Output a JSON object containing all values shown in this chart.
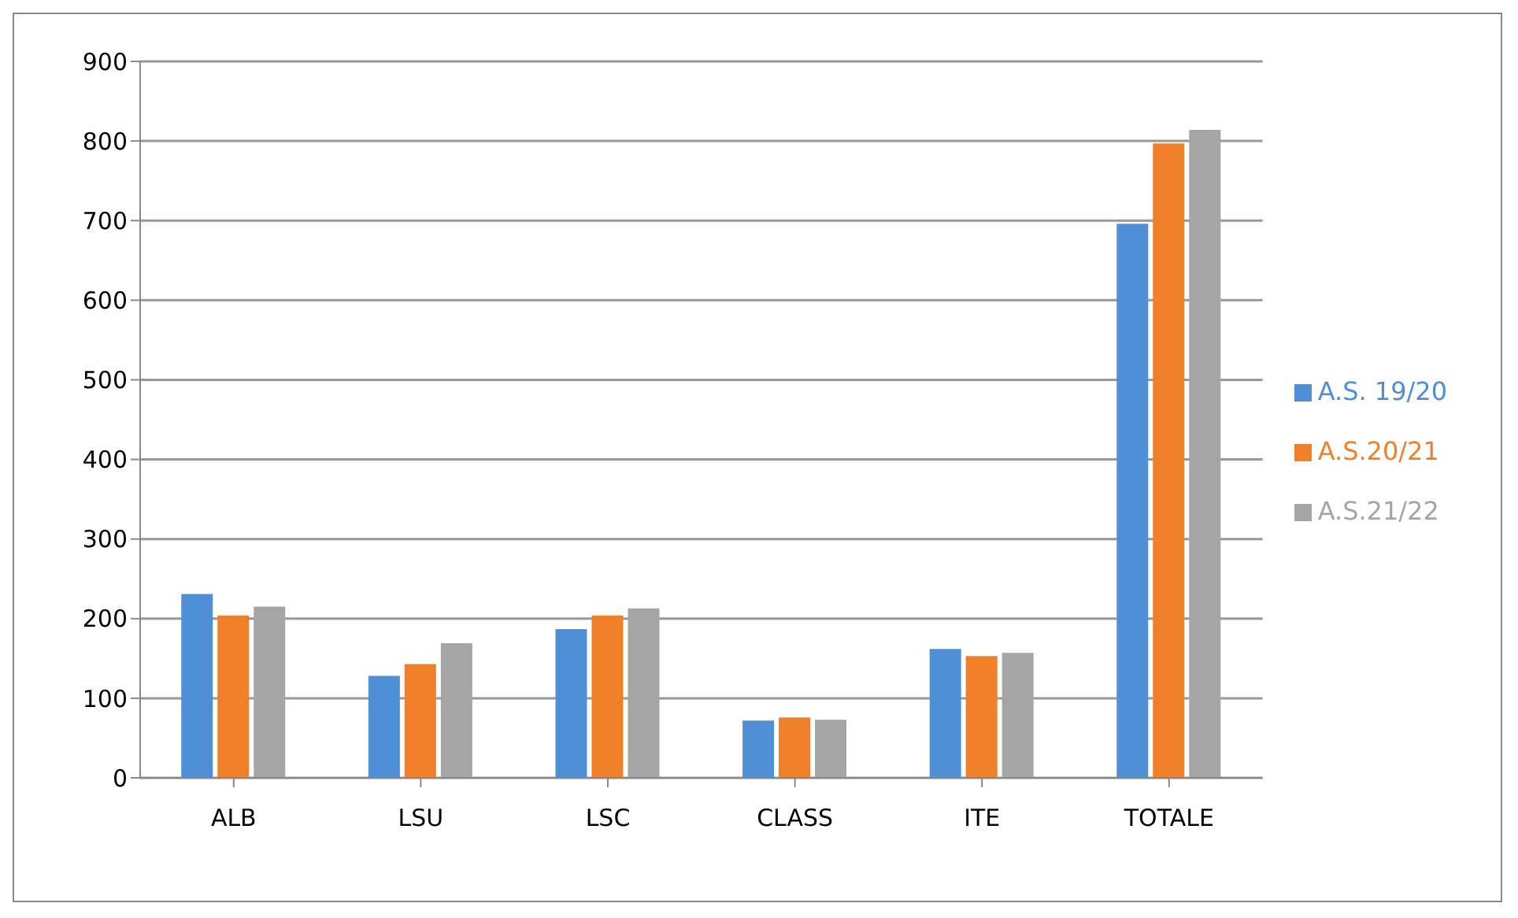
{
  "chart_data": {
    "type": "bar",
    "categories": [
      "ALB",
      "LSU",
      "LSC",
      "CLASS",
      "ITE",
      "TOTALE"
    ],
    "series": [
      {
        "name": "A.S. 19/20",
        "color": "#4f8fd6",
        "values": [
          231,
          128,
          187,
          72,
          162,
          696
        ]
      },
      {
        "name": "A.S.20/21",
        "color": "#f07f2a",
        "values": [
          204,
          143,
          204,
          76,
          153,
          797
        ]
      },
      {
        "name": "A.S.21/22",
        "color": "#a5a5a5",
        "values": [
          215,
          169,
          213,
          73,
          157,
          814
        ]
      }
    ],
    "ylim": [
      0,
      900
    ],
    "yticks": [
      0,
      100,
      200,
      300,
      400,
      500,
      600,
      700,
      800,
      900
    ],
    "grid": "y",
    "legend": "right"
  }
}
